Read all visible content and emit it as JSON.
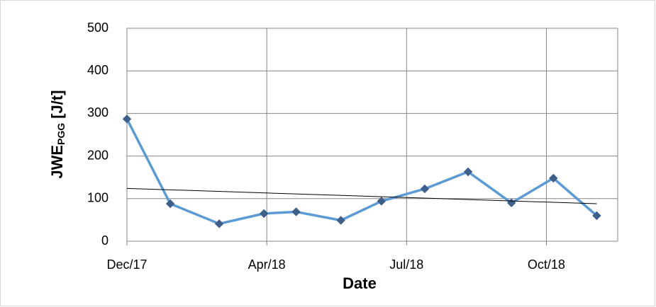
{
  "chart_data": {
    "type": "line",
    "y_label": {
      "main": "JWE",
      "sub": "PGG",
      "unit": "[J/t]"
    },
    "x_label": "Date",
    "x": [
      0,
      31,
      66,
      98,
      121,
      153,
      182,
      213,
      244,
      275,
      305,
      336
    ],
    "series": [
      {
        "color": "#5b9bd5",
        "marker_color": "#3e5f8a",
        "values": [
          287,
          88,
          41,
          65,
          69,
          49,
          94,
          123,
          163,
          90,
          148,
          60
        ]
      }
    ],
    "trendline": {
      "color": "#000000",
      "x": [
        0,
        336
      ],
      "values": [
        124,
        88
      ]
    },
    "xlim": [
      0,
      351
    ],
    "xticks": [
      {
        "value": 0,
        "label": "Dec/17"
      },
      {
        "value": 100,
        "label": "Apr/18"
      },
      {
        "value": 200,
        "label": "Jul/18"
      },
      {
        "value": 300,
        "label": "Oct/18"
      }
    ],
    "ylim": [
      0,
      500
    ],
    "yticks": [
      0,
      100,
      200,
      300,
      400,
      500
    ],
    "grid": true
  }
}
